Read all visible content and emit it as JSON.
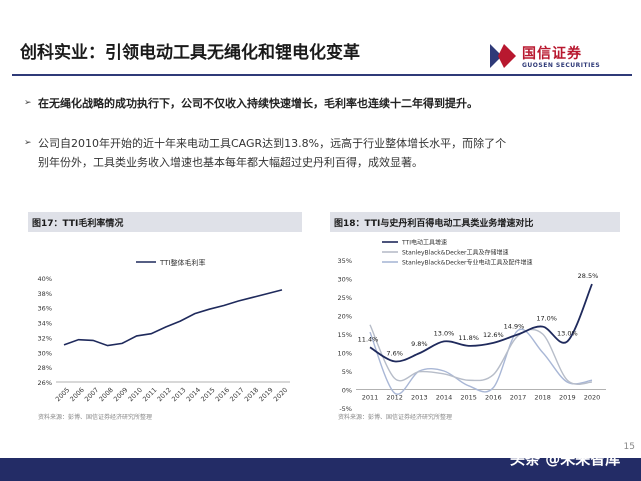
{
  "slide": {
    "title": "创科实业：引领电动工具无绳化和锂电化变革",
    "bullet_1": "在无绳化战略的成功执行下，公司不仅收入持续快速增长，毛利率也连续十二年得到提升。",
    "bullet_2_line_1": "公司自2010年开始的近十年来电动工具CAGR达到13.8%，远高于行业整体增长水平，而除了个",
    "bullet_2_line_2": "别年份外，工具类业务收入增速也基本每年都大幅超过史丹利百得，成效显著。",
    "page_number": "15",
    "watermark": "头条 @未来智库"
  },
  "logo": {
    "cn": "国信证券",
    "en": "GUOSEN SECURITIES"
  },
  "figure_left": {
    "title": "图17：TTI毛利率情况",
    "source": "资料来源：彭博、国信证券经济研究所整理"
  },
  "figure_right": {
    "title": "图18：TTI与史丹利百得电动工具类业务增速对比",
    "source": "资料来源：彭博、国信证券经济研究所整理"
  },
  "colors": {
    "tti": "#1f2a5c",
    "sbd_tools": "#b7bdc9",
    "sbd_power": "#a9b7d6",
    "accent": "#b8182f",
    "bar": "#232c66"
  },
  "chart_data": [
    {
      "type": "line",
      "x": [
        "2005",
        "2006",
        "2007",
        "2008",
        "2009",
        "2010",
        "2011",
        "2012",
        "2013",
        "2014",
        "2015",
        "2016",
        "2017",
        "2018",
        "2019",
        "2020"
      ],
      "series": [
        {
          "name": "TTI整体毛利率",
          "values": [
            31.0,
            31.7,
            31.6,
            30.9,
            31.2,
            32.2,
            32.5,
            33.4,
            34.2,
            35.2,
            35.8,
            36.3,
            36.9,
            37.4,
            37.9,
            38.4
          ]
        }
      ],
      "yticks": [
        "26%",
        "28%",
        "30%",
        "32%",
        "34%",
        "36%",
        "38%",
        "40%"
      ],
      "ylim": [
        26,
        40
      ],
      "legend": "top-center"
    },
    {
      "type": "line",
      "x": [
        "2011",
        "2012",
        "2013",
        "2014",
        "2015",
        "2016",
        "2017",
        "2018",
        "2019",
        "2020"
      ],
      "series": [
        {
          "name": "TTI电动工具增速",
          "values": [
            11.4,
            7.6,
            9.8,
            13.0,
            11.8,
            12.6,
            14.9,
            17.0,
            13.0,
            28.5
          ],
          "labels": [
            "11.4%",
            "7.6%",
            "9.8%",
            "13.0%",
            "11.8%",
            "12.6%",
            "14.9%",
            "17.0%",
            "13.0%",
            "28.5%"
          ]
        },
        {
          "name": "StanleyBlack&Decker工具及存储增速",
          "values": [
            17.5,
            3.0,
            4.8,
            4.2,
            2.5,
            4.0,
            14.5,
            15.0,
            2.5,
            2.0
          ]
        },
        {
          "name": "StanleyBlack&Decker专业电动工具及配件增速",
          "values": [
            15.5,
            -1.0,
            5.0,
            5.0,
            1.0,
            0.5,
            16.0,
            10.0,
            2.0,
            2.5
          ]
        }
      ],
      "yticks": [
        "-5%",
        "0%",
        "5%",
        "10%",
        "15%",
        "20%",
        "25%",
        "30%",
        "35%"
      ],
      "ylim": [
        -5,
        35
      ],
      "legend": "top-left"
    }
  ]
}
